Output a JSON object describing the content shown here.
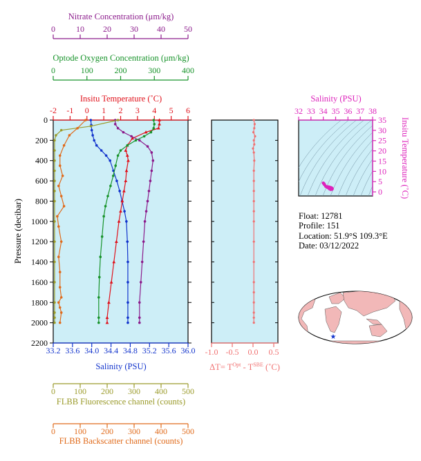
{
  "colors": {
    "nitrate": "#8b1a8b",
    "oxygen": "#17932a",
    "temperature": "#e0101a",
    "salinity": "#1133cc",
    "fluorescence": "#9a9a2a",
    "backscatter": "#e06a1a",
    "delta_t": "#f07070",
    "ts_axis": "#dd22bb",
    "plot_bg": "#cdeef7"
  },
  "info": {
    "float": "Float:  12781",
    "profile": "Profile:  151",
    "location": "Location:  51.9°S  109.3°E",
    "date": "Date:  03/12/2022"
  },
  "chart_data": [
    {
      "type": "line",
      "id": "main_profile",
      "ylabel": "Pressure (decibar)",
      "ylim": [
        2200,
        0
      ],
      "yticks": [
        0,
        200,
        400,
        600,
        800,
        1000,
        1200,
        1400,
        1600,
        1800,
        2000,
        2200
      ],
      "grid": false,
      "axes": {
        "nitrate": {
          "label": "Nitrate Concentration (μm/kg)",
          "range": [
            0,
            50
          ],
          "ticks": [
            0,
            10,
            20,
            30,
            40,
            50
          ]
        },
        "oxygen": {
          "label": "Optode Oxygen Concentration (μm/kg)",
          "range": [
            0,
            400
          ],
          "ticks": [
            0,
            100,
            200,
            300,
            400
          ]
        },
        "temperature": {
          "label": "Insitu Temperature (˚C)",
          "range": [
            -2,
            6
          ],
          "ticks": [
            -2,
            -1,
            0,
            1,
            2,
            3,
            4,
            5,
            6
          ]
        },
        "salinity": {
          "label": "Salinity (PSU)",
          "range": [
            33.2,
            36.0
          ],
          "ticks": [
            "33.2",
            "33.6",
            "34.0",
            "34.4",
            "34.8",
            "35.2",
            "35.6",
            "36.0"
          ]
        },
        "fluorescence": {
          "label": "FLBB Fluorescence channel (counts)",
          "range": [
            0,
            500
          ],
          "ticks": [
            0,
            100,
            200,
            300,
            400,
            500
          ]
        },
        "backscatter": {
          "label": "FLBB Backscatter channel (counts)",
          "range": [
            0,
            500
          ],
          "ticks": [
            0,
            100,
            200,
            300,
            400,
            500
          ]
        }
      },
      "series": [
        {
          "key": "salinity",
          "marker": "circle",
          "x": [
            33.98,
            33.99,
            34.0,
            34.02,
            34.05,
            34.1,
            34.2,
            34.3,
            34.38,
            34.45,
            34.52,
            34.58,
            34.63,
            34.68,
            34.72,
            34.74,
            34.75,
            34.75,
            34.75,
            34.75,
            34.75
          ],
          "y": [
            0,
            50,
            100,
            150,
            200,
            250,
            300,
            350,
            400,
            500,
            600,
            700,
            800,
            900,
            1000,
            1200,
            1400,
            1600,
            1800,
            1950,
            2000
          ]
        },
        {
          "key": "temperature",
          "marker": "triangle",
          "x": [
            4.3,
            4.3,
            4.25,
            3.5,
            2.7,
            2.4,
            2.3,
            2.4,
            2.45,
            2.35,
            2.3,
            2.2,
            2.1,
            2.0,
            1.9,
            1.75,
            1.6,
            1.45,
            1.3,
            1.2,
            1.2
          ],
          "y": [
            0,
            40,
            80,
            120,
            180,
            250,
            300,
            350,
            400,
            500,
            600,
            700,
            800,
            900,
            1000,
            1200,
            1400,
            1600,
            1800,
            1950,
            2000
          ]
        },
        {
          "key": "nitrate",
          "marker": "circle",
          "x": [
            23,
            23,
            24,
            26,
            29,
            32,
            35,
            36.5,
            37,
            36.5,
            36,
            35.5,
            35,
            34.5,
            34,
            33.5,
            33,
            32.5,
            32,
            32,
            32
          ],
          "y": [
            0,
            40,
            80,
            120,
            160,
            200,
            260,
            320,
            400,
            500,
            600,
            700,
            800,
            900,
            1000,
            1200,
            1400,
            1600,
            1800,
            1950,
            2000
          ]
        },
        {
          "key": "oxygen",
          "marker": "circle",
          "x": [
            298,
            300,
            298,
            290,
            270,
            245,
            220,
            200,
            192,
            185,
            178,
            170,
            162,
            155,
            150,
            145,
            140,
            137,
            135,
            135,
            135
          ],
          "y": [
            0,
            40,
            80,
            120,
            160,
            200,
            250,
            300,
            350,
            450,
            550,
            650,
            750,
            850,
            950,
            1150,
            1350,
            1550,
            1750,
            1950,
            2000
          ]
        },
        {
          "key": "fluorescence",
          "marker": "circle",
          "x": [
            240,
            140,
            30,
            10,
            5,
            5,
            5,
            5,
            5,
            5,
            5,
            5,
            5,
            5,
            5,
            5,
            5,
            5,
            5
          ],
          "y": [
            0,
            60,
            100,
            150,
            200,
            300,
            400,
            500,
            600,
            700,
            800,
            1000,
            1200,
            1400,
            1600,
            1800,
            1900,
            1950,
            2000
          ]
        },
        {
          "key": "backscatter",
          "marker": "circle",
          "x": [
            120,
            90,
            60,
            40,
            25,
            25,
            35,
            20,
            30,
            40,
            15,
            20,
            30,
            20,
            25,
            25,
            30,
            20,
            25,
            30,
            25
          ],
          "y": [
            0,
            80,
            150,
            250,
            350,
            450,
            550,
            650,
            750,
            850,
            950,
            1050,
            1200,
            1350,
            1500,
            1650,
            1750,
            1800,
            1850,
            1900,
            2000
          ]
        }
      ]
    },
    {
      "type": "line",
      "id": "delta_t",
      "xlabel": "ΔT= T",
      "xlabel_sup1": "Opt",
      "xlabel_mid": " - T",
      "xlabel_sup2": "SBE",
      "xlabel_end": " (˚C)",
      "xlim": [
        -1.0,
        0.6
      ],
      "xticks": [
        "-1.0",
        "-0.5",
        "0.0",
        "0.5"
      ],
      "ylim": [
        2200,
        0
      ],
      "series": [
        {
          "x": [
            0.02,
            0.04,
            0.03,
            0.01,
            0.05,
            0.02,
            0.03,
            0.0,
            0.02,
            0.03,
            0.02,
            0.02,
            0.02,
            0.02,
            0.02,
            0.02,
            0.02,
            0.02,
            0.02,
            0.02,
            0.02,
            0.02,
            0.02,
            0.02
          ],
          "y": [
            0,
            40,
            80,
            120,
            160,
            200,
            240,
            280,
            320,
            400,
            500,
            600,
            700,
            800,
            900,
            1000,
            1200,
            1400,
            1600,
            1700,
            1800,
            1900,
            1950,
            2000
          ]
        }
      ]
    },
    {
      "type": "scatter",
      "id": "ts_diagram",
      "xlabel": "Salinity (PSU)",
      "ylabel": "Insitu Temperature (˚C)",
      "xlim": [
        32,
        38
      ],
      "ylim": [
        -2,
        35
      ],
      "xticks": [
        32,
        33,
        34,
        35,
        36,
        37,
        38
      ],
      "yticks": [
        0,
        5,
        10,
        15,
        20,
        25,
        30,
        35
      ],
      "points": {
        "x": [
          34.0,
          34.05,
          34.1,
          34.2,
          34.3,
          34.45,
          34.55,
          34.65,
          34.7,
          34.72,
          34.72,
          34.7,
          34.6,
          34.5,
          34.4,
          34.35
        ],
        "y": [
          4.3,
          4.0,
          3.5,
          2.7,
          2.3,
          2.4,
          2.2,
          2.0,
          1.8,
          1.6,
          1.4,
          1.3,
          1.2,
          1.5,
          2.0,
          2.5
        ]
      }
    }
  ]
}
